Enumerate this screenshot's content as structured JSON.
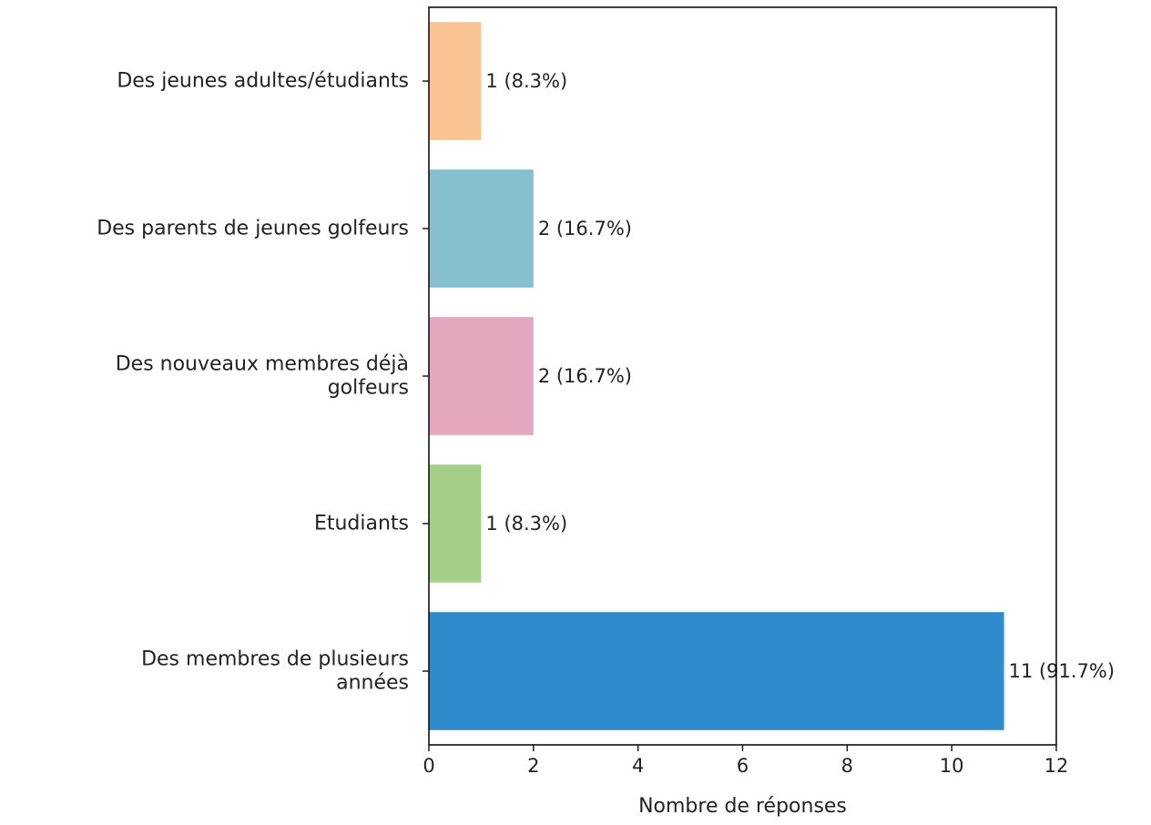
{
  "chart_data": {
    "type": "bar",
    "orientation": "horizontal",
    "title": "",
    "xlabel": "Nombre de réponses",
    "ylabel": "",
    "xlim": [
      0,
      12
    ],
    "xticks": [
      "0",
      "2",
      "4",
      "6",
      "8",
      "10",
      "12"
    ],
    "grid": false,
    "legend": "none",
    "categories": [
      {
        "lines": [
          "Des jeunes adultes/étudiants"
        ],
        "value": 1,
        "label": "1 (8.3%)",
        "color": "#f9c393"
      },
      {
        "lines": [
          "Des parents de jeunes golfeurs"
        ],
        "value": 2,
        "label": "2 (16.7%)",
        "color": "#86bfcd"
      },
      {
        "lines": [
          "Des nouveaux membres déjà",
          "golfeurs"
        ],
        "value": 2,
        "label": "2 (16.7%)",
        "color": "#e3a8c0"
      },
      {
        "lines": [
          "Etudiants"
        ],
        "value": 1,
        "label": "1 (8.3%)",
        "color": "#a5cf88"
      },
      {
        "lines": [
          "Des membres de plusieurs",
          "années"
        ],
        "value": 11,
        "label": "11 (91.7%)",
        "color": "#2f8bcc"
      }
    ]
  }
}
